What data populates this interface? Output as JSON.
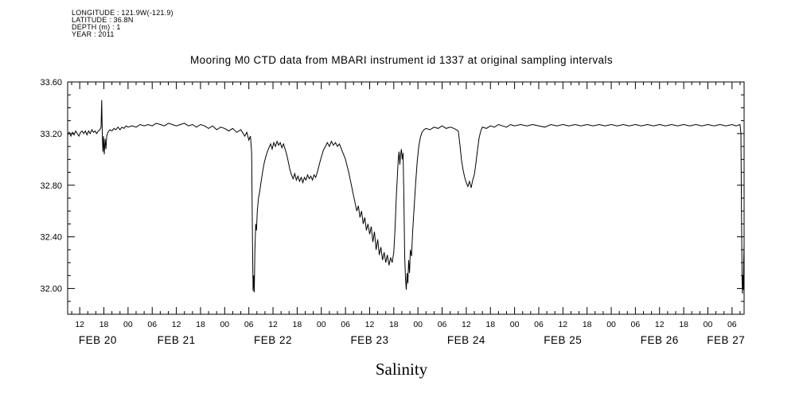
{
  "header": {
    "lines": [
      "LONGITUDE : 121.9W(-121.9)",
      "LATITUDE : 36.8N",
      "DEPTH (m) : 1",
      "YEAR : 2011"
    ]
  },
  "chart_data": {
    "type": "line",
    "title": "Mooring M0 CTD data from MBARI instrument id 1337 at original sampling intervals",
    "xlabel_bottom": "Salinity",
    "x_unit": "hours since Feb 20 00:00",
    "x_range": [
      9,
      177
    ],
    "y_range": [
      31.8,
      33.6
    ],
    "y_major_ticks": [
      32.0,
      32.4,
      32.8,
      33.2,
      33.6
    ],
    "y_tick_labels": [
      "32.00",
      "32.40",
      "32.80",
      "33.20",
      "33.60"
    ],
    "y_minor_step": 0.1,
    "x_major_start": 12,
    "x_major_step": 6,
    "x_minor_step": 2,
    "x_tick_labels": [
      "12",
      "18",
      "00",
      "06",
      "12",
      "18",
      "00",
      "06",
      "12",
      "18",
      "00",
      "06",
      "12",
      "18",
      "00",
      "06",
      "12",
      "18",
      "00",
      "06",
      "12",
      "18",
      "00",
      "06",
      "12",
      "18",
      "00",
      "06"
    ],
    "day_labels": [
      {
        "text": "FEB 20",
        "hour": 16.5
      },
      {
        "text": "FEB 21",
        "hour": 36
      },
      {
        "text": "FEB 22",
        "hour": 60
      },
      {
        "text": "FEB 23",
        "hour": 84
      },
      {
        "text": "FEB 24",
        "hour": 108
      },
      {
        "text": "FEB 25",
        "hour": 132
      },
      {
        "text": "FEB 26",
        "hour": 156
      },
      {
        "text": "FEB 27",
        "hour": 172.5
      }
    ],
    "grid": false,
    "legend": "none",
    "line_color": "#000000",
    "series": [
      {
        "name": "Salinity",
        "points": [
          [
            9.0,
            33.19
          ],
          [
            9.4,
            33.21
          ],
          [
            9.8,
            33.18
          ],
          [
            10.2,
            33.21
          ],
          [
            10.6,
            33.19
          ],
          [
            11.0,
            33.22
          ],
          [
            11.4,
            33.2
          ],
          [
            11.8,
            33.18
          ],
          [
            12.2,
            33.21
          ],
          [
            12.6,
            33.22
          ],
          [
            13.0,
            33.2
          ],
          [
            13.4,
            33.22
          ],
          [
            13.8,
            33.19
          ],
          [
            14.2,
            33.22
          ],
          [
            14.6,
            33.2
          ],
          [
            15.0,
            33.23
          ],
          [
            15.4,
            33.21
          ],
          [
            15.8,
            33.22
          ],
          [
            16.2,
            33.2
          ],
          [
            16.6,
            33.22
          ],
          [
            17.0,
            33.23
          ],
          [
            17.3,
            33.25
          ],
          [
            17.45,
            33.46
          ],
          [
            17.6,
            33.2
          ],
          [
            17.75,
            33.06
          ],
          [
            17.9,
            33.18
          ],
          [
            18.1,
            33.04
          ],
          [
            18.3,
            33.16
          ],
          [
            18.5,
            33.08
          ],
          [
            18.7,
            33.18
          ],
          [
            19.0,
            33.21
          ],
          [
            19.5,
            33.23
          ],
          [
            20,
            33.22
          ],
          [
            20.5,
            33.24
          ],
          [
            21,
            33.23
          ],
          [
            21.5,
            33.25
          ],
          [
            22,
            33.23
          ],
          [
            22.5,
            33.25
          ],
          [
            23,
            33.24
          ],
          [
            23.5,
            33.26
          ],
          [
            24,
            33.25
          ],
          [
            25,
            33.26
          ],
          [
            26,
            33.25
          ],
          [
            27,
            33.27
          ],
          [
            28,
            33.26
          ],
          [
            29,
            33.27
          ],
          [
            30,
            33.26
          ],
          [
            31,
            33.28
          ],
          [
            32,
            33.27
          ],
          [
            33,
            33.26
          ],
          [
            34,
            33.28
          ],
          [
            35,
            33.27
          ],
          [
            36,
            33.26
          ],
          [
            37,
            33.27
          ],
          [
            38,
            33.28
          ],
          [
            39,
            33.26
          ],
          [
            40,
            33.27
          ],
          [
            41,
            33.25
          ],
          [
            42,
            33.27
          ],
          [
            43,
            33.26
          ],
          [
            44,
            33.24
          ],
          [
            45,
            33.26
          ],
          [
            46,
            33.23
          ],
          [
            47,
            33.25
          ],
          [
            48,
            33.24
          ],
          [
            49,
            33.22
          ],
          [
            50,
            33.24
          ],
          [
            51,
            33.21
          ],
          [
            52,
            33.23
          ],
          [
            53,
            33.18
          ],
          [
            53.5,
            33.21
          ],
          [
            54,
            33.15
          ],
          [
            54.4,
            33.18
          ],
          [
            54.7,
            33.05
          ],
          [
            54.9,
            32.4
          ],
          [
            55.05,
            31.98
          ],
          [
            55.2,
            32.1
          ],
          [
            55.35,
            31.97
          ],
          [
            55.5,
            32.3
          ],
          [
            55.7,
            32.5
          ],
          [
            55.9,
            32.45
          ],
          [
            56.1,
            32.6
          ],
          [
            56.4,
            32.7
          ],
          [
            56.7,
            32.75
          ],
          [
            57.0,
            32.82
          ],
          [
            57.4,
            32.9
          ],
          [
            57.8,
            32.97
          ],
          [
            58.2,
            33.02
          ],
          [
            58.6,
            33.06
          ],
          [
            59.0,
            33.09
          ],
          [
            59.4,
            33.12
          ],
          [
            59.8,
            33.08
          ],
          [
            60.2,
            33.13
          ],
          [
            60.6,
            33.1
          ],
          [
            61.0,
            33.14
          ],
          [
            61.4,
            33.11
          ],
          [
            61.8,
            33.13
          ],
          [
            62.2,
            33.09
          ],
          [
            62.6,
            33.12
          ],
          [
            63.0,
            33.08
          ],
          [
            63.4,
            33.04
          ],
          [
            63.8,
            32.98
          ],
          [
            64.2,
            32.92
          ],
          [
            64.6,
            32.88
          ],
          [
            65.0,
            32.85
          ],
          [
            65.4,
            32.89
          ],
          [
            65.8,
            32.84
          ],
          [
            66.2,
            32.87
          ],
          [
            66.6,
            32.83
          ],
          [
            67.0,
            32.86
          ],
          [
            67.4,
            32.82
          ],
          [
            67.8,
            32.86
          ],
          [
            68.2,
            32.84
          ],
          [
            68.6,
            32.88
          ],
          [
            69.0,
            32.85
          ],
          [
            69.4,
            32.87
          ],
          [
            69.8,
            32.84
          ],
          [
            70.2,
            32.88
          ],
          [
            70.6,
            32.86
          ],
          [
            71.0,
            32.9
          ],
          [
            71.5,
            32.96
          ],
          [
            72.0,
            33.02
          ],
          [
            72.5,
            33.07
          ],
          [
            73.0,
            33.1
          ],
          [
            73.5,
            33.13
          ],
          [
            74.0,
            33.1
          ],
          [
            74.5,
            33.14
          ],
          [
            75.0,
            33.11
          ],
          [
            75.5,
            33.13
          ],
          [
            76.0,
            33.1
          ],
          [
            76.5,
            33.12
          ],
          [
            77.0,
            33.08
          ],
          [
            77.5,
            33.04
          ],
          [
            78.0,
            33.0
          ],
          [
            78.4,
            32.95
          ],
          [
            78.8,
            32.9
          ],
          [
            79.2,
            32.84
          ],
          [
            79.6,
            32.78
          ],
          [
            80.0,
            32.72
          ],
          [
            80.4,
            32.66
          ],
          [
            80.8,
            32.6
          ],
          [
            81.2,
            32.64
          ],
          [
            81.6,
            32.55
          ],
          [
            82.0,
            32.6
          ],
          [
            82.4,
            32.5
          ],
          [
            82.8,
            32.55
          ],
          [
            83.2,
            32.45
          ],
          [
            83.6,
            32.5
          ],
          [
            84.0,
            32.42
          ],
          [
            84.4,
            32.48
          ],
          [
            84.8,
            32.36
          ],
          [
            85.2,
            32.44
          ],
          [
            85.6,
            32.3
          ],
          [
            86.0,
            32.38
          ],
          [
            86.4,
            32.26
          ],
          [
            86.8,
            32.32
          ],
          [
            87.2,
            32.22
          ],
          [
            87.6,
            32.28
          ],
          [
            88.0,
            32.2
          ],
          [
            88.4,
            32.26
          ],
          [
            88.8,
            32.18
          ],
          [
            89.2,
            32.24
          ],
          [
            89.6,
            32.2
          ],
          [
            90.0,
            32.28
          ],
          [
            90.3,
            32.45
          ],
          [
            90.6,
            32.7
          ],
          [
            90.9,
            32.88
          ],
          [
            91.1,
            33.0
          ],
          [
            91.3,
            33.06
          ],
          [
            91.5,
            32.96
          ],
          [
            91.7,
            33.04
          ],
          [
            91.9,
            33.08
          ],
          [
            92.1,
            33.0
          ],
          [
            92.3,
            33.05
          ],
          [
            92.5,
            32.7
          ],
          [
            92.7,
            32.25
          ],
          [
            92.9,
            32.08
          ],
          [
            93.1,
            31.99
          ],
          [
            93.3,
            32.12
          ],
          [
            93.5,
            32.04
          ],
          [
            93.7,
            32.22
          ],
          [
            93.9,
            32.12
          ],
          [
            94.1,
            32.3
          ],
          [
            94.4,
            32.25
          ],
          [
            94.7,
            32.45
          ],
          [
            95.0,
            32.6
          ],
          [
            95.4,
            32.8
          ],
          [
            95.8,
            32.98
          ],
          [
            96.2,
            33.1
          ],
          [
            96.6,
            33.17
          ],
          [
            97.0,
            33.21
          ],
          [
            97.5,
            33.23
          ],
          [
            98.0,
            33.24
          ],
          [
            99,
            33.23
          ],
          [
            100,
            33.25
          ],
          [
            101,
            33.24
          ],
          [
            102,
            33.26
          ],
          [
            103,
            33.24
          ],
          [
            104,
            33.25
          ],
          [
            105,
            33.24
          ],
          [
            106,
            33.22
          ],
          [
            106.4,
            33.12
          ],
          [
            106.8,
            33.0
          ],
          [
            107.2,
            32.92
          ],
          [
            107.6,
            32.86
          ],
          [
            108.0,
            32.82
          ],
          [
            108.4,
            32.79
          ],
          [
            108.8,
            32.83
          ],
          [
            109.2,
            32.78
          ],
          [
            109.6,
            32.84
          ],
          [
            110.0,
            32.88
          ],
          [
            110.4,
            32.97
          ],
          [
            110.8,
            33.08
          ],
          [
            111.2,
            33.17
          ],
          [
            111.6,
            33.22
          ],
          [
            112.0,
            33.25
          ],
          [
            113,
            33.24
          ],
          [
            114,
            33.26
          ],
          [
            115,
            33.25
          ],
          [
            116,
            33.27
          ],
          [
            117,
            33.26
          ],
          [
            118,
            33.25
          ],
          [
            119,
            33.27
          ],
          [
            120,
            33.26
          ],
          [
            121.5,
            33.27
          ],
          [
            123,
            33.26
          ],
          [
            124.5,
            33.27
          ],
          [
            126,
            33.26
          ],
          [
            127.5,
            33.25
          ],
          [
            129,
            33.27
          ],
          [
            130.5,
            33.26
          ],
          [
            132,
            33.27
          ],
          [
            133.5,
            33.26
          ],
          [
            135,
            33.27
          ],
          [
            136.5,
            33.26
          ],
          [
            138,
            33.27
          ],
          [
            139.5,
            33.26
          ],
          [
            141,
            33.27
          ],
          [
            142.5,
            33.26
          ],
          [
            144,
            33.27
          ],
          [
            145.5,
            33.26
          ],
          [
            147,
            33.27
          ],
          [
            148.5,
            33.26
          ],
          [
            150,
            33.27
          ],
          [
            151.5,
            33.26
          ],
          [
            153,
            33.27
          ],
          [
            154.5,
            33.26
          ],
          [
            156,
            33.27
          ],
          [
            157.5,
            33.26
          ],
          [
            159,
            33.27
          ],
          [
            160.5,
            33.26
          ],
          [
            162,
            33.27
          ],
          [
            163.5,
            33.26
          ],
          [
            165,
            33.27
          ],
          [
            166.5,
            33.26
          ],
          [
            168,
            33.27
          ],
          [
            169.5,
            33.26
          ],
          [
            171,
            33.27
          ],
          [
            172.5,
            33.26
          ],
          [
            174,
            33.27
          ],
          [
            175,
            33.26
          ],
          [
            176.0,
            33.27
          ],
          [
            176.2,
            33.2
          ],
          [
            176.35,
            32.6
          ],
          [
            176.5,
            32.05
          ],
          [
            176.6,
            31.96
          ],
          [
            176.7,
            32.1
          ],
          [
            176.8,
            31.99
          ],
          [
            176.9,
            32.22
          ],
          [
            177.0,
            32.34
          ]
        ]
      }
    ]
  }
}
